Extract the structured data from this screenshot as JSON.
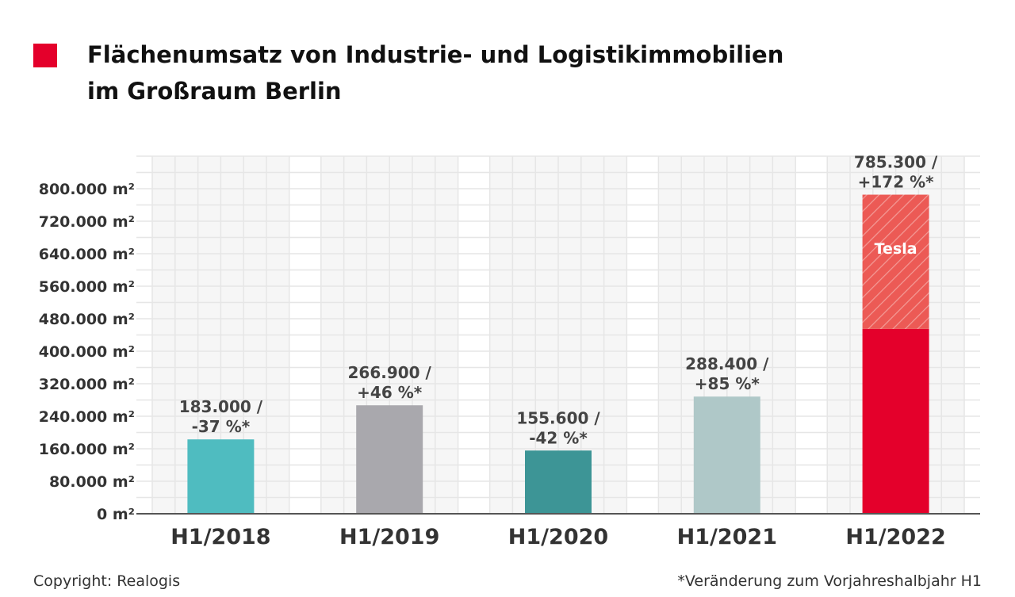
{
  "title": {
    "line1": "Flächenumsatz von Industrie- und Logistikimmobilien",
    "line2": "im Großraum Berlin",
    "marker_color": "#e4002b"
  },
  "chart_data": {
    "type": "bar",
    "title": "Flächenumsatz von Industrie- und Logistikimmobilien im Großraum Berlin",
    "categories": [
      "H1/2018",
      "H1/2019",
      "H1/2020",
      "H1/2021",
      "H1/2022"
    ],
    "values": [
      183000,
      266900,
      155600,
      288400,
      785300
    ],
    "value_labels": [
      [
        "183.000 /",
        "-37 %*"
      ],
      [
        "266.900 /",
        "+46 %*"
      ],
      [
        "155.600 /",
        "-42 %*"
      ],
      [
        "288.400 /",
        "+85 %*"
      ],
      [
        "785.300 /",
        "+172 %*"
      ]
    ],
    "colors": [
      "#4fbcc0",
      "#a9a8ad",
      "#3d9596",
      "#afc8c8",
      "#e4002b"
    ],
    "stacked_segment": {
      "category": "H1/2022",
      "base_value": 455000,
      "label": "Tesla",
      "color": "#ec5a55",
      "pattern": "diagonal-hatch"
    },
    "yticks": [
      0,
      80000,
      160000,
      240000,
      320000,
      400000,
      480000,
      560000,
      640000,
      720000,
      800000
    ],
    "ytick_labels": [
      "0 m²",
      "80.000 m²",
      "160.000 m²",
      "240.000 m²",
      "320.000 m²",
      "400.000 m²",
      "480.000 m²",
      "560.000 m²",
      "640.000 m²",
      "720.000 m²",
      "800.000 m²"
    ],
    "ylim": [
      0,
      880000
    ],
    "grid": true,
    "xlabel": "",
    "ylabel": ""
  },
  "footer": {
    "copyright": "Copyright: Realogis",
    "note": "*Veränderung zum Vorjahreshalbjahr H1"
  }
}
